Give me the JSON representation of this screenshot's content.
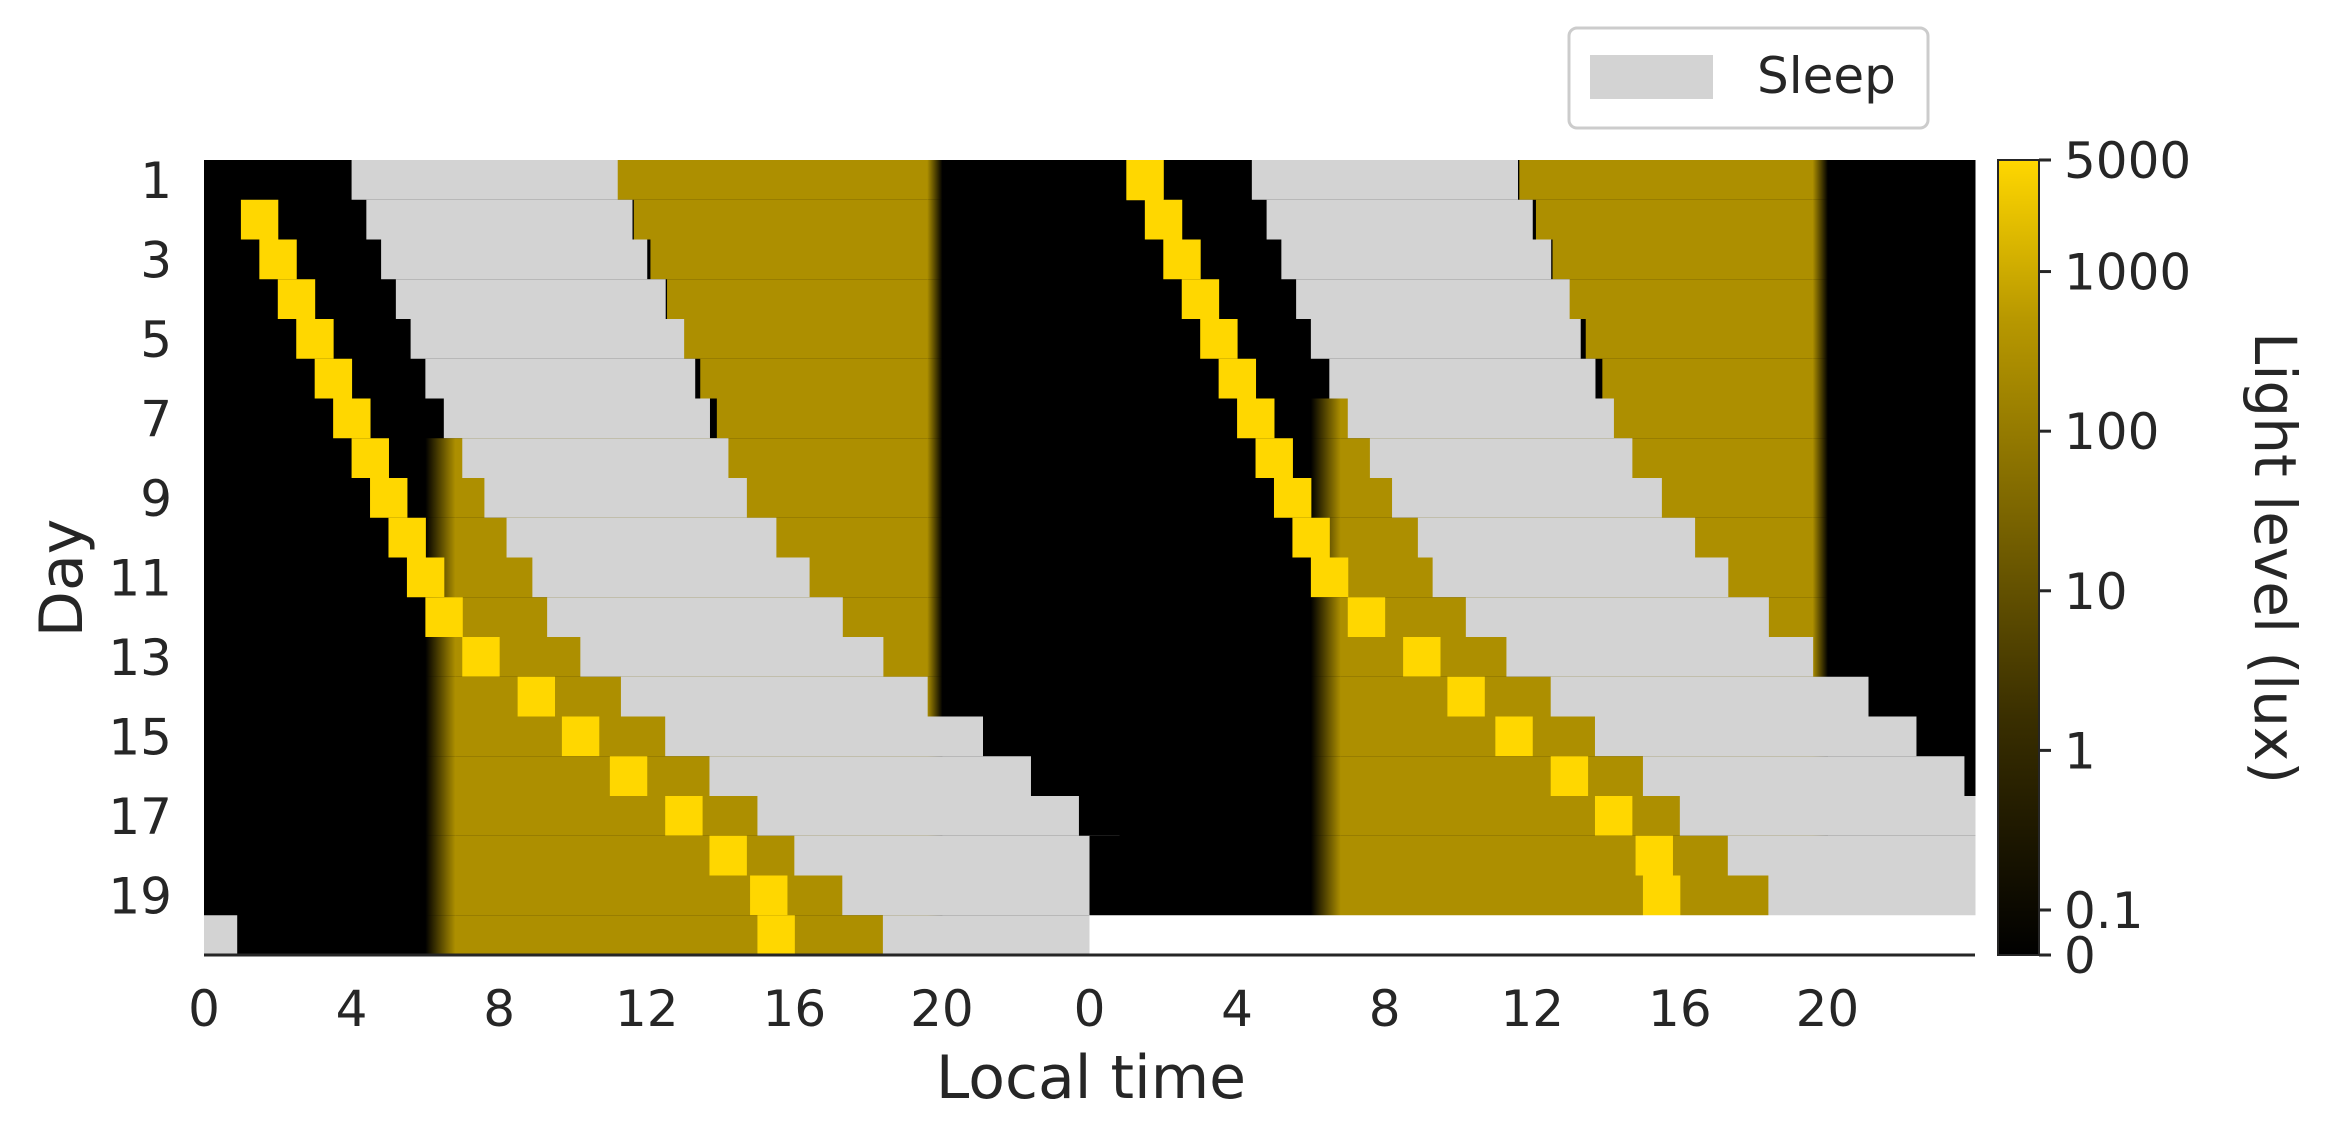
{
  "chart_data": {
    "type": "heatmap",
    "xlabel": "Local time",
    "ylabel": "Day",
    "colorbar_label": "Light level (lux)",
    "legend": {
      "entries": [
        {
          "label": "Sleep",
          "color": "#d3d3d3"
        }
      ],
      "placement": "top-right"
    },
    "x_tick_labels": [
      "0",
      "4",
      "8",
      "12",
      "16",
      "20",
      "0",
      "4",
      "8",
      "12",
      "16",
      "20"
    ],
    "x_tick_hours": [
      0,
      4,
      8,
      12,
      16,
      20,
      24,
      28,
      32,
      36,
      40,
      44
    ],
    "x_range_hours": [
      0,
      48
    ],
    "y_tick_labels": [
      "1",
      "3",
      "5",
      "7",
      "9",
      "11",
      "13",
      "15",
      "17",
      "19"
    ],
    "days": 20,
    "colorbar": {
      "tick_labels": [
        "5000",
        "1000",
        "100",
        "10",
        "1",
        "0.1",
        "0"
      ],
      "tick_values": [
        5000,
        1000,
        100,
        10,
        1,
        0.1,
        0
      ],
      "scale": "symlog"
    },
    "colors": {
      "dark": "#000000",
      "indoor": "#ad8f00",
      "bright": "#ffd700",
      "sleep": "#d3d3d3"
    },
    "light_levels_lux": {
      "dark": 0,
      "indoor": 100,
      "bright": 5000
    },
    "daily_schedule": {
      "description_units": "hours of local time, per day index d (0-based); double plot shows day d then day d+1",
      "rows": [
        {
          "day": 1,
          "bright": [
            25.0,
            26.0
          ],
          "sleep": [
            4.0,
            11.2
          ],
          "indoor": [
            11.2,
            20.0
          ],
          "dark_from": 20.0
        },
        {
          "day": 2,
          "bright": [
            1.0,
            2.0
          ],
          "sleep": [
            4.4,
            11.6
          ],
          "indoor": [
            11.6,
            20.0
          ]
        },
        {
          "day": 3,
          "bright": [
            1.5,
            2.5
          ],
          "sleep": [
            4.8,
            12.0
          ],
          "indoor": [
            12.0,
            20.0
          ]
        },
        {
          "day": 4,
          "bright": [
            2.0,
            3.0
          ],
          "sleep": [
            5.2,
            12.5
          ],
          "indoor": [
            12.5,
            20.0
          ]
        },
        {
          "day": 5,
          "bright": [
            2.5,
            3.5
          ],
          "sleep": [
            5.6,
            13.0
          ],
          "indoor": [
            13.0,
            20.0
          ]
        },
        {
          "day": 6,
          "bright": [
            3.0,
            4.0
          ],
          "sleep": [
            6.0,
            13.3
          ],
          "indoor": [
            13.3,
            20.0
          ]
        },
        {
          "day": 7,
          "bright": [
            3.5,
            4.5
          ],
          "sleep": [
            6.5,
            13.7
          ],
          "indoor": [
            13.7,
            20.0
          ]
        },
        {
          "day": 8,
          "bright": [
            4.0,
            5.0
          ],
          "sleep": [
            7.0,
            14.2
          ],
          "indoor": [
            14.2,
            20.0
          ]
        },
        {
          "day": 9,
          "bright": [
            4.5,
            5.5
          ],
          "sleep": [
            7.6,
            14.7
          ],
          "indoor": [
            14.7,
            20.0
          ]
        },
        {
          "day": 10,
          "bright": [
            5.0,
            6.0
          ],
          "sleep": [
            8.2,
            15.5
          ],
          "indoor": [
            15.5,
            20.0
          ]
        },
        {
          "day": 11,
          "bright": [
            5.5,
            6.5
          ],
          "sleep": [
            8.9,
            16.4
          ],
          "indoor": [
            16.4,
            20.0
          ]
        },
        {
          "day": 12,
          "bright": [
            6.0,
            7.0
          ],
          "sleep": [
            9.3,
            17.3
          ],
          "indoor": [
            17.3,
            20.0
          ]
        },
        {
          "day": 13,
          "bright": [
            7.0,
            8.0
          ],
          "sleep": [
            10.2,
            18.4
          ],
          "indoor": [
            18.4,
            20.0
          ]
        },
        {
          "day": 14,
          "bright": [
            8.5,
            9.5
          ],
          "sleep": [
            11.3,
            19.6
          ],
          "indoor": [
            19.6,
            20.0
          ]
        },
        {
          "day": 15,
          "bright": [
            9.7,
            10.7
          ],
          "sleep": [
            12.5,
            21.1
          ]
        },
        {
          "day": 16,
          "bright": [
            11.0,
            12.0
          ],
          "sleep": [
            13.7,
            22.4
          ]
        },
        {
          "day": 17,
          "bright": [
            12.5,
            13.5
          ],
          "sleep": [
            15.0,
            23.7
          ]
        },
        {
          "day": 18,
          "bright": [
            13.7,
            14.7
          ],
          "sleep": [
            16.0,
            24.8
          ]
        },
        {
          "day": 19,
          "bright": [
            14.8,
            15.8
          ],
          "sleep": [
            17.3,
            25.9
          ]
        },
        {
          "day": 20,
          "bright": [
            15.0,
            16.0
          ],
          "sleep": [
            18.4,
            24.0
          ]
        }
      ]
    }
  }
}
